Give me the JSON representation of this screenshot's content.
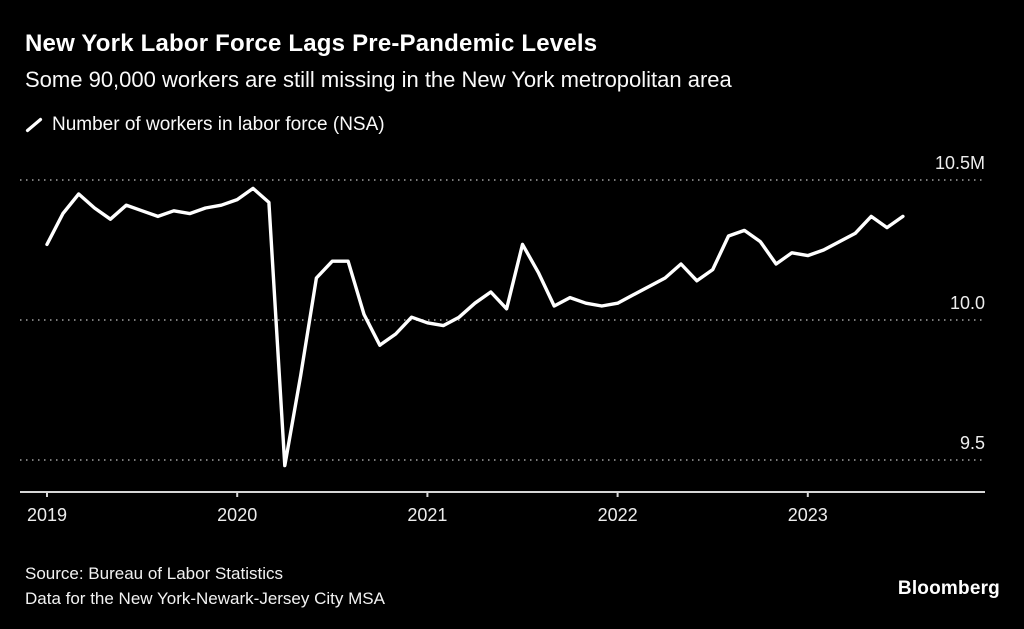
{
  "header": {
    "title": "New York Labor Force Lags Pre-Pandemic Levels",
    "subtitle": "Some 90,000 workers are still missing in the New York metropolitan area"
  },
  "legend": {
    "label": "Number of workers in labor force (NSA)"
  },
  "footer": {
    "source_line1": "Source: Bureau of Labor Statistics",
    "source_line2": "Data for the New York-Newark-Jersey City MSA",
    "brand": "Bloomberg"
  },
  "colors": {
    "background": "#000000",
    "line": "#ffffff",
    "grid": "#7a7a7a",
    "axis": "#d6d6d6",
    "text": "#ffffff"
  },
  "chart_data": {
    "type": "line",
    "title": "New York Labor Force Lags Pre-Pandemic Levels",
    "subtitle": "Some 90,000 workers are still missing in the New York metropolitan area",
    "unit": "millions of workers",
    "frequency": "monthly",
    "x_start": "2019-01",
    "x_end": "2023-07",
    "grid": "dotted-horizontal",
    "legend_position": "top-left",
    "ylim": [
      9.39,
      10.63
    ],
    "year_ticks": [
      "2019",
      "2020",
      "2021",
      "2022",
      "2023"
    ],
    "y_ticks": [
      {
        "value": 10.5,
        "label": "10.5M"
      },
      {
        "value": 10.0,
        "label": "10.0"
      },
      {
        "value": 9.5,
        "label": "9.5"
      }
    ],
    "series": [
      {
        "name": "Number of workers in labor force (NSA)",
        "values": [
          10.27,
          10.38,
          10.45,
          10.4,
          10.36,
          10.41,
          10.39,
          10.37,
          10.39,
          10.38,
          10.4,
          10.41,
          10.43,
          10.47,
          10.42,
          9.48,
          9.8,
          10.15,
          10.21,
          10.21,
          10.02,
          9.91,
          9.95,
          10.01,
          9.99,
          9.98,
          10.01,
          10.06,
          10.1,
          10.04,
          10.27,
          10.17,
          10.05,
          10.08,
          10.06,
          10.05,
          10.06,
          10.09,
          10.12,
          10.15,
          10.2,
          10.14,
          10.18,
          10.3,
          10.32,
          10.28,
          10.2,
          10.24,
          10.23,
          10.25,
          10.28,
          10.31,
          10.37,
          10.33,
          10.37
        ]
      }
    ]
  }
}
